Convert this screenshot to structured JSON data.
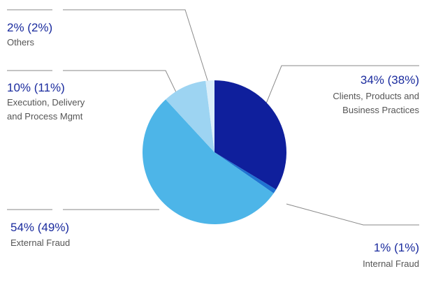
{
  "chart_data": {
    "type": "pie",
    "categories": [
      "Clients, Products and Business Practices",
      "Internal Fraud",
      "External Fraud",
      "Execution, Delivery and Process Mgmt",
      "Others"
    ],
    "values": [
      34,
      1,
      54,
      10,
      2
    ],
    "value_labels": [
      "34% (38%)",
      "1% (1%)",
      "54% (49%)",
      "10% (11%)",
      "2% (2%)"
    ],
    "colors": [
      "#0f1f9c",
      "#1f73d2",
      "#4db5e8",
      "#9dd4f2",
      "#d9eefa"
    ]
  }
}
